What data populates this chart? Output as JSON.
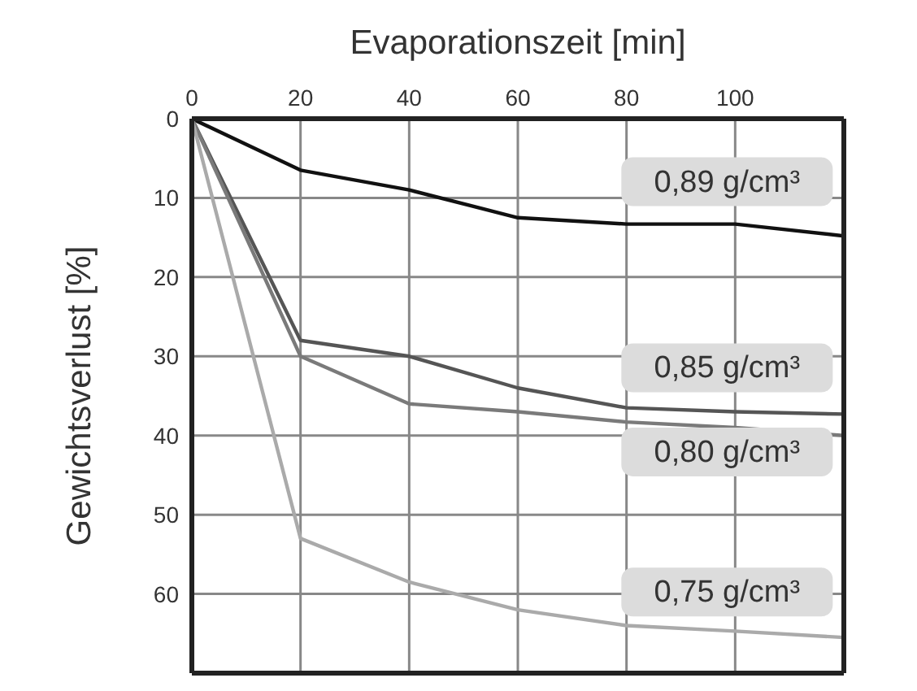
{
  "chart_data": {
    "type": "line",
    "xlabel": "Evaporationszeit [min]",
    "ylabel": "Gewichtsverlust [%]",
    "x": [
      0,
      20,
      40,
      60,
      80,
      100,
      120
    ],
    "series": [
      {
        "name": "0,89 g/cm³",
        "color": "#111111",
        "values": [
          0,
          6.5,
          9,
          12.5,
          13.3,
          13.3,
          14.8
        ]
      },
      {
        "name": "0,85 g/cm³",
        "color": "#555555",
        "values": [
          0,
          28,
          30,
          34,
          36.5,
          37,
          37.3
        ]
      },
      {
        "name": "0,80 g/cm³",
        "color": "#7a7a7a",
        "values": [
          0,
          30,
          36,
          37,
          38.3,
          39,
          40
        ]
      },
      {
        "name": "0,75 g/cm³",
        "color": "#aaaaaa",
        "values": [
          0,
          53,
          58.5,
          62,
          64,
          64.7,
          65.5
        ]
      }
    ],
    "xlim": [
      0,
      120
    ],
    "xticks": [
      0,
      20,
      40,
      60,
      80,
      100
    ],
    "ylim": [
      70,
      0
    ],
    "yticks": [
      0,
      10,
      20,
      30,
      40,
      50,
      60
    ],
    "grid": true,
    "legend": false,
    "marker": "none",
    "line_style": "solid"
  }
}
